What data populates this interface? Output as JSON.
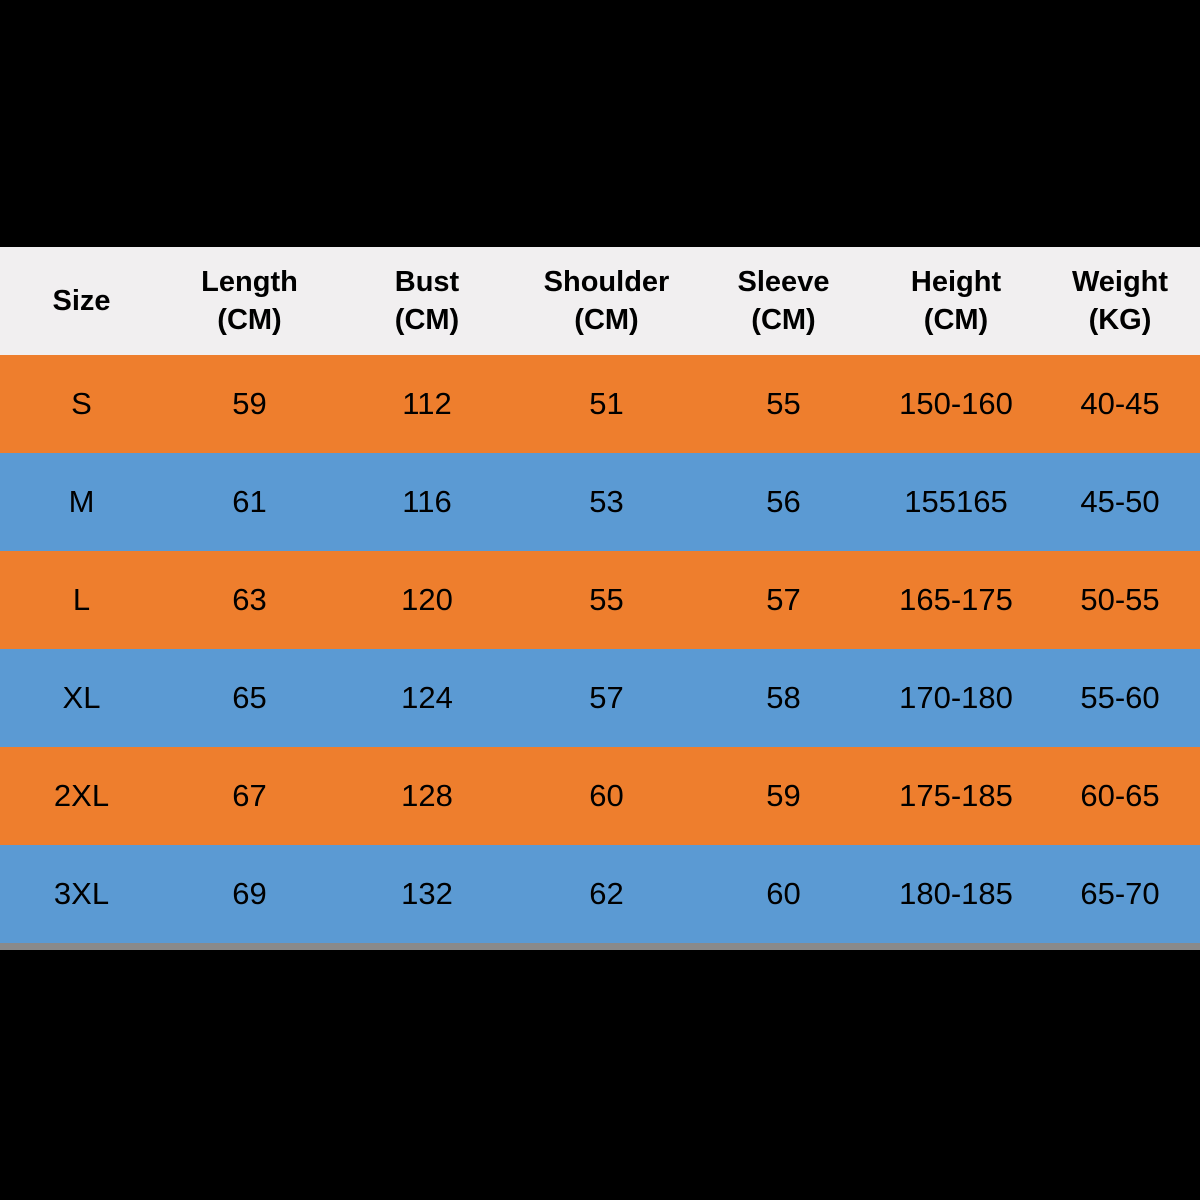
{
  "colors": {
    "black": "#000000",
    "header_bg": "#F1EFF0",
    "orange": "#EE7E2D",
    "blue": "#5B9AD3",
    "gray_strip": "#8A8A8A",
    "text": "#000000"
  },
  "table": {
    "columns": [
      {
        "label": "Size",
        "sub": ""
      },
      {
        "label": "Length",
        "sub": "(CM)"
      },
      {
        "label": "Bust",
        "sub": "(CM)"
      },
      {
        "label": "Shoulder",
        "sub": "(CM)"
      },
      {
        "label": "Sleeve",
        "sub": "(CM)"
      },
      {
        "label": "Height",
        "sub": "(CM)"
      },
      {
        "label": "Weight",
        "sub": "(KG)"
      }
    ],
    "rows": [
      {
        "size": "S",
        "values": [
          "59",
          "112",
          "51",
          "55",
          "150-160",
          "40-45"
        ]
      },
      {
        "size": "M",
        "values": [
          "61",
          "116",
          "53",
          "56",
          "155165",
          "45-50"
        ]
      },
      {
        "size": "L",
        "values": [
          "63",
          "120",
          "55",
          "57",
          "165-175",
          "50-55"
        ]
      },
      {
        "size": "XL",
        "values": [
          "65",
          "124",
          "57",
          "58",
          "170-180",
          "55-60"
        ]
      },
      {
        "size": "2XL",
        "values": [
          "67",
          "128",
          "60",
          "59",
          "175-185",
          "60-65"
        ]
      },
      {
        "size": "3XL",
        "values": [
          "69",
          "132",
          "62",
          "60",
          "180-185",
          "65-70"
        ]
      }
    ]
  },
  "chart_data": {
    "type": "table",
    "title": "Garment size chart",
    "columns": [
      "Size",
      "Length (CM)",
      "Bust (CM)",
      "Shoulder (CM)",
      "Sleeve (CM)",
      "Height (CM)",
      "Weight (KG)"
    ],
    "rows": [
      [
        "S",
        "59",
        "112",
        "51",
        "55",
        "150-160",
        "40-45"
      ],
      [
        "M",
        "61",
        "116",
        "53",
        "56",
        "155165",
        "45-50"
      ],
      [
        "L",
        "63",
        "120",
        "55",
        "57",
        "165-175",
        "50-55"
      ],
      [
        "XL",
        "65",
        "124",
        "57",
        "58",
        "170-180",
        "55-60"
      ],
      [
        "2XL",
        "67",
        "128",
        "60",
        "59",
        "175-185",
        "60-65"
      ],
      [
        "3XL",
        "69",
        "132",
        "62",
        "60",
        "180-185",
        "65-70"
      ]
    ],
    "row_colors_alternate": [
      "#EE7E2D",
      "#5B9AD3"
    ],
    "header_background": "#F1EFF0"
  }
}
